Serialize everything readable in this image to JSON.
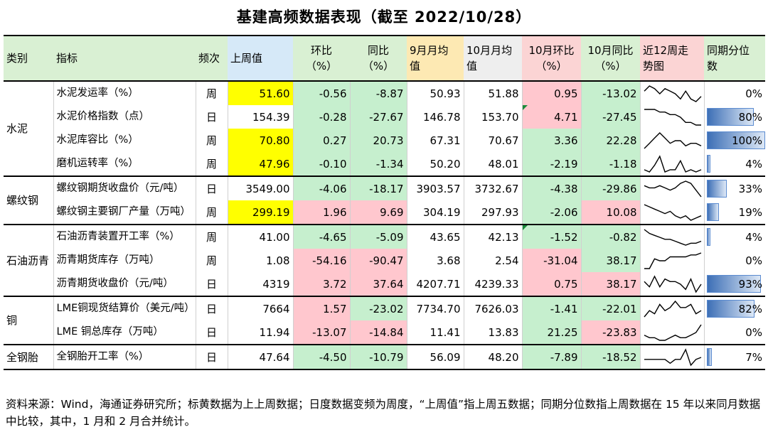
{
  "title": "基建高频数据表现（截至 2022/10/28）",
  "headers": {
    "category": "类别",
    "indicator": "指标",
    "freq": "频次",
    "last_week": "上周值",
    "mom": "环比\n（%）",
    "yoy": "同比\n（%）",
    "sep_avg": "9月月均\n值",
    "oct_avg": "10月月均\n值",
    "oct_mom": "10月环比\n（%）",
    "oct_yoy": "10月同比\n（%）",
    "trend": "近12周走\n势图",
    "percentile": "同期分位\n数"
  },
  "groups": [
    {
      "category": "水泥",
      "rows": [
        {
          "indicator": "水泥发运率（%）",
          "freq": "周",
          "last_week": "51.60",
          "mom": "-0.56",
          "yoy": "-8.87",
          "sep_avg": "50.93",
          "oct_avg": "51.88",
          "oct_mom": "0.95",
          "oct_yoy": "-13.02",
          "percentile": "0%",
          "pct_value": 0,
          "spark": [
            7,
            9,
            8,
            6,
            8,
            7,
            6,
            4,
            7,
            4,
            3,
            5
          ],
          "styles": {
            "last_week": "yellow",
            "mom": "green",
            "yoy": "green",
            "oct_mom": "red",
            "oct_yoy": "green"
          }
        },
        {
          "indicator": "水泥价格指数（点）",
          "freq": "日",
          "last_week": "154.39",
          "mom": "-0.28",
          "yoy": "-27.67",
          "sep_avg": "146.78",
          "oct_avg": "153.70",
          "oct_mom": "4.71",
          "oct_yoy": "-27.45",
          "percentile": "80%",
          "pct_value": 0.8,
          "spark": [
            8,
            8,
            8,
            7,
            7,
            6,
            6,
            5,
            3,
            3,
            2,
            2
          ],
          "styles": {
            "mom": "green",
            "yoy": "green",
            "oct_mom": "red",
            "oct_yoy": "green"
          },
          "oct_mom_marker": true
        },
        {
          "indicator": "水泥库容比（%）",
          "freq": "周",
          "last_week": "70.80",
          "mom": "0.27",
          "yoy": "20.73",
          "sep_avg": "67.31",
          "oct_avg": "70.67",
          "oct_mom": "3.36",
          "oct_yoy": "22.28",
          "percentile": "100%",
          "pct_value": 1.0,
          "spark": [
            2,
            4,
            6,
            8,
            6,
            4,
            5,
            5,
            3,
            4,
            4,
            3
          ],
          "styles": {
            "last_week": "yellow",
            "mom": "green",
            "yoy": "green",
            "oct_mom": "green",
            "oct_yoy": "green"
          }
        },
        {
          "indicator": "磨机运转率（%）",
          "freq": "周",
          "last_week": "47.96",
          "mom": "-0.10",
          "yoy": "-1.34",
          "sep_avg": "50.20",
          "oct_avg": "48.01",
          "oct_mom": "-2.19",
          "oct_yoy": "-1.18",
          "percentile": "4%",
          "pct_value": 0.04,
          "spark": [
            3,
            2,
            5,
            9,
            2,
            3,
            3,
            7,
            2,
            3,
            2,
            3
          ],
          "styles": {
            "last_week": "yellow",
            "mom": "green",
            "yoy": "green",
            "oct_mom": "green",
            "oct_yoy": "green"
          }
        }
      ]
    },
    {
      "category": "螺纹钢",
      "rows": [
        {
          "indicator": "螺纹钢期货收盘价（元/吨）",
          "freq": "日",
          "last_week": "3549.00",
          "mom": "-4.06",
          "yoy": "-18.17",
          "sep_avg": "3903.57",
          "oct_avg": "3732.67",
          "oct_mom": "-4.38",
          "oct_yoy": "-29.86",
          "percentile": "33%",
          "pct_value": 0.33,
          "spark": [
            6,
            5,
            5,
            6,
            5,
            4,
            5,
            7,
            8,
            7,
            4,
            1
          ],
          "styles": {
            "mom": "green",
            "yoy": "green",
            "oct_mom": "green",
            "oct_yoy": "green"
          }
        },
        {
          "indicator": "螺纹钢主要钢厂产量（万吨）",
          "freq": "周",
          "last_week": "299.19",
          "mom": "1.96",
          "yoy": "9.69",
          "sep_avg": "304.19",
          "oct_avg": "297.93",
          "oct_mom": "-2.06",
          "oct_yoy": "10.08",
          "percentile": "19%",
          "pct_value": 0.19,
          "spark": [
            9,
            8,
            7,
            6,
            5,
            6,
            4,
            3,
            4,
            2,
            3,
            4
          ],
          "styles": {
            "last_week": "yellow",
            "mom": "red",
            "yoy": "red",
            "oct_mom": "green",
            "oct_yoy": "red"
          }
        }
      ]
    },
    {
      "category": "石油沥青",
      "rows": [
        {
          "indicator": "石油沥青装置开工率（%）",
          "freq": "周",
          "last_week": "41.00",
          "mom": "-4.65",
          "yoy": "-5.09",
          "sep_avg": "43.65",
          "oct_avg": "42.13",
          "oct_mom": "-1.52",
          "oct_yoy": "-0.82",
          "percentile": "4%",
          "pct_value": 0.04,
          "spark": [
            9,
            7,
            6,
            5,
            4,
            4,
            3,
            2,
            1,
            2,
            2,
            3
          ],
          "styles": {
            "mom": "green",
            "yoy": "green",
            "oct_mom": "green",
            "oct_yoy": "green"
          },
          "oct_mom_marker": true
        },
        {
          "indicator": "沥青期货库存（万吨）",
          "freq": "周",
          "last_week": "1.08",
          "mom": "-54.16",
          "yoy": "-90.47",
          "sep_avg": "3.68",
          "oct_avg": "2.54",
          "oct_mom": "-31.04",
          "oct_yoy": "38.17",
          "percentile": "0%",
          "pct_value": 0,
          "spark": [
            1,
            1,
            6,
            5,
            5,
            7,
            7,
            7,
            7,
            8,
            8,
            9
          ],
          "styles": {
            "mom": "red",
            "yoy": "red",
            "oct_mom": "red",
            "oct_yoy": "green"
          }
        },
        {
          "indicator": "沥青期货收盘价（元/吨）",
          "freq": "日",
          "last_week": "4319",
          "mom": "3.72",
          "yoy": "37.64",
          "sep_avg": "4207.71",
          "oct_avg": "4239.33",
          "oct_mom": "0.75",
          "oct_yoy": "38.17",
          "percentile": "93%",
          "pct_value": 0.93,
          "spark": [
            5,
            3,
            7,
            3,
            6,
            5,
            5,
            4,
            2,
            6,
            1,
            4
          ],
          "styles": {
            "mom": "red",
            "yoy": "red",
            "oct_mom": "red",
            "oct_yoy": "red"
          }
        }
      ]
    },
    {
      "category": "铜",
      "rows": [
        {
          "indicator": "LME铜现货结算价（美元/吨）",
          "freq": "日",
          "last_week": "7664",
          "mom": "1.57",
          "yoy": "-23.02",
          "sep_avg": "7734.70",
          "oct_avg": "7626.03",
          "oct_mom": "-1.41",
          "oct_yoy": "-22.01",
          "percentile": "82%",
          "pct_value": 0.82,
          "spark": [
            2,
            4,
            3,
            6,
            4,
            5,
            7,
            5,
            5,
            6,
            3,
            4
          ],
          "styles": {
            "mom": "red",
            "yoy": "green",
            "oct_mom": "green",
            "oct_yoy": "green"
          }
        },
        {
          "indicator": "LME 铜总库存（万吨）",
          "freq": "日",
          "last_week": "11.94",
          "mom": "-13.07",
          "yoy": "-14.84",
          "sep_avg": "11.41",
          "oct_avg": "13.83",
          "oct_mom": "21.25",
          "oct_yoy": "-23.83",
          "percentile": "0%",
          "pct_value": 0,
          "spark": [
            4,
            3,
            3,
            2,
            2,
            3,
            4,
            3,
            3,
            4,
            5,
            8
          ],
          "styles": {
            "mom": "red",
            "yoy": "red",
            "oct_mom": "green",
            "oct_yoy": "red"
          }
        }
      ]
    },
    {
      "category": "全钢胎",
      "rows": [
        {
          "indicator": "全钢胎开工率（%）",
          "freq": "日",
          "last_week": "47.64",
          "mom": "-4.50",
          "yoy": "-10.79",
          "sep_avg": "56.09",
          "oct_avg": "48.20",
          "oct_mom": "-7.89",
          "oct_yoy": "-18.52",
          "percentile": "7%",
          "pct_value": 0.07,
          "spark": [
            4,
            4,
            4,
            4,
            4,
            2,
            4,
            4,
            9,
            1,
            4,
            5
          ],
          "styles": {
            "mom": "green",
            "yoy": "green",
            "oct_mom": "green",
            "oct_yoy": "green"
          }
        }
      ]
    }
  ],
  "footer": "资料来源：Wind，海通证券研究所；标黄数据为上上周数据；日度数据变频为周度，“上周值”指上周五数据；同期分位数指上周数据在 15 年以来同月数据中比较，其中，1 月和 2 月合并统计。"
}
